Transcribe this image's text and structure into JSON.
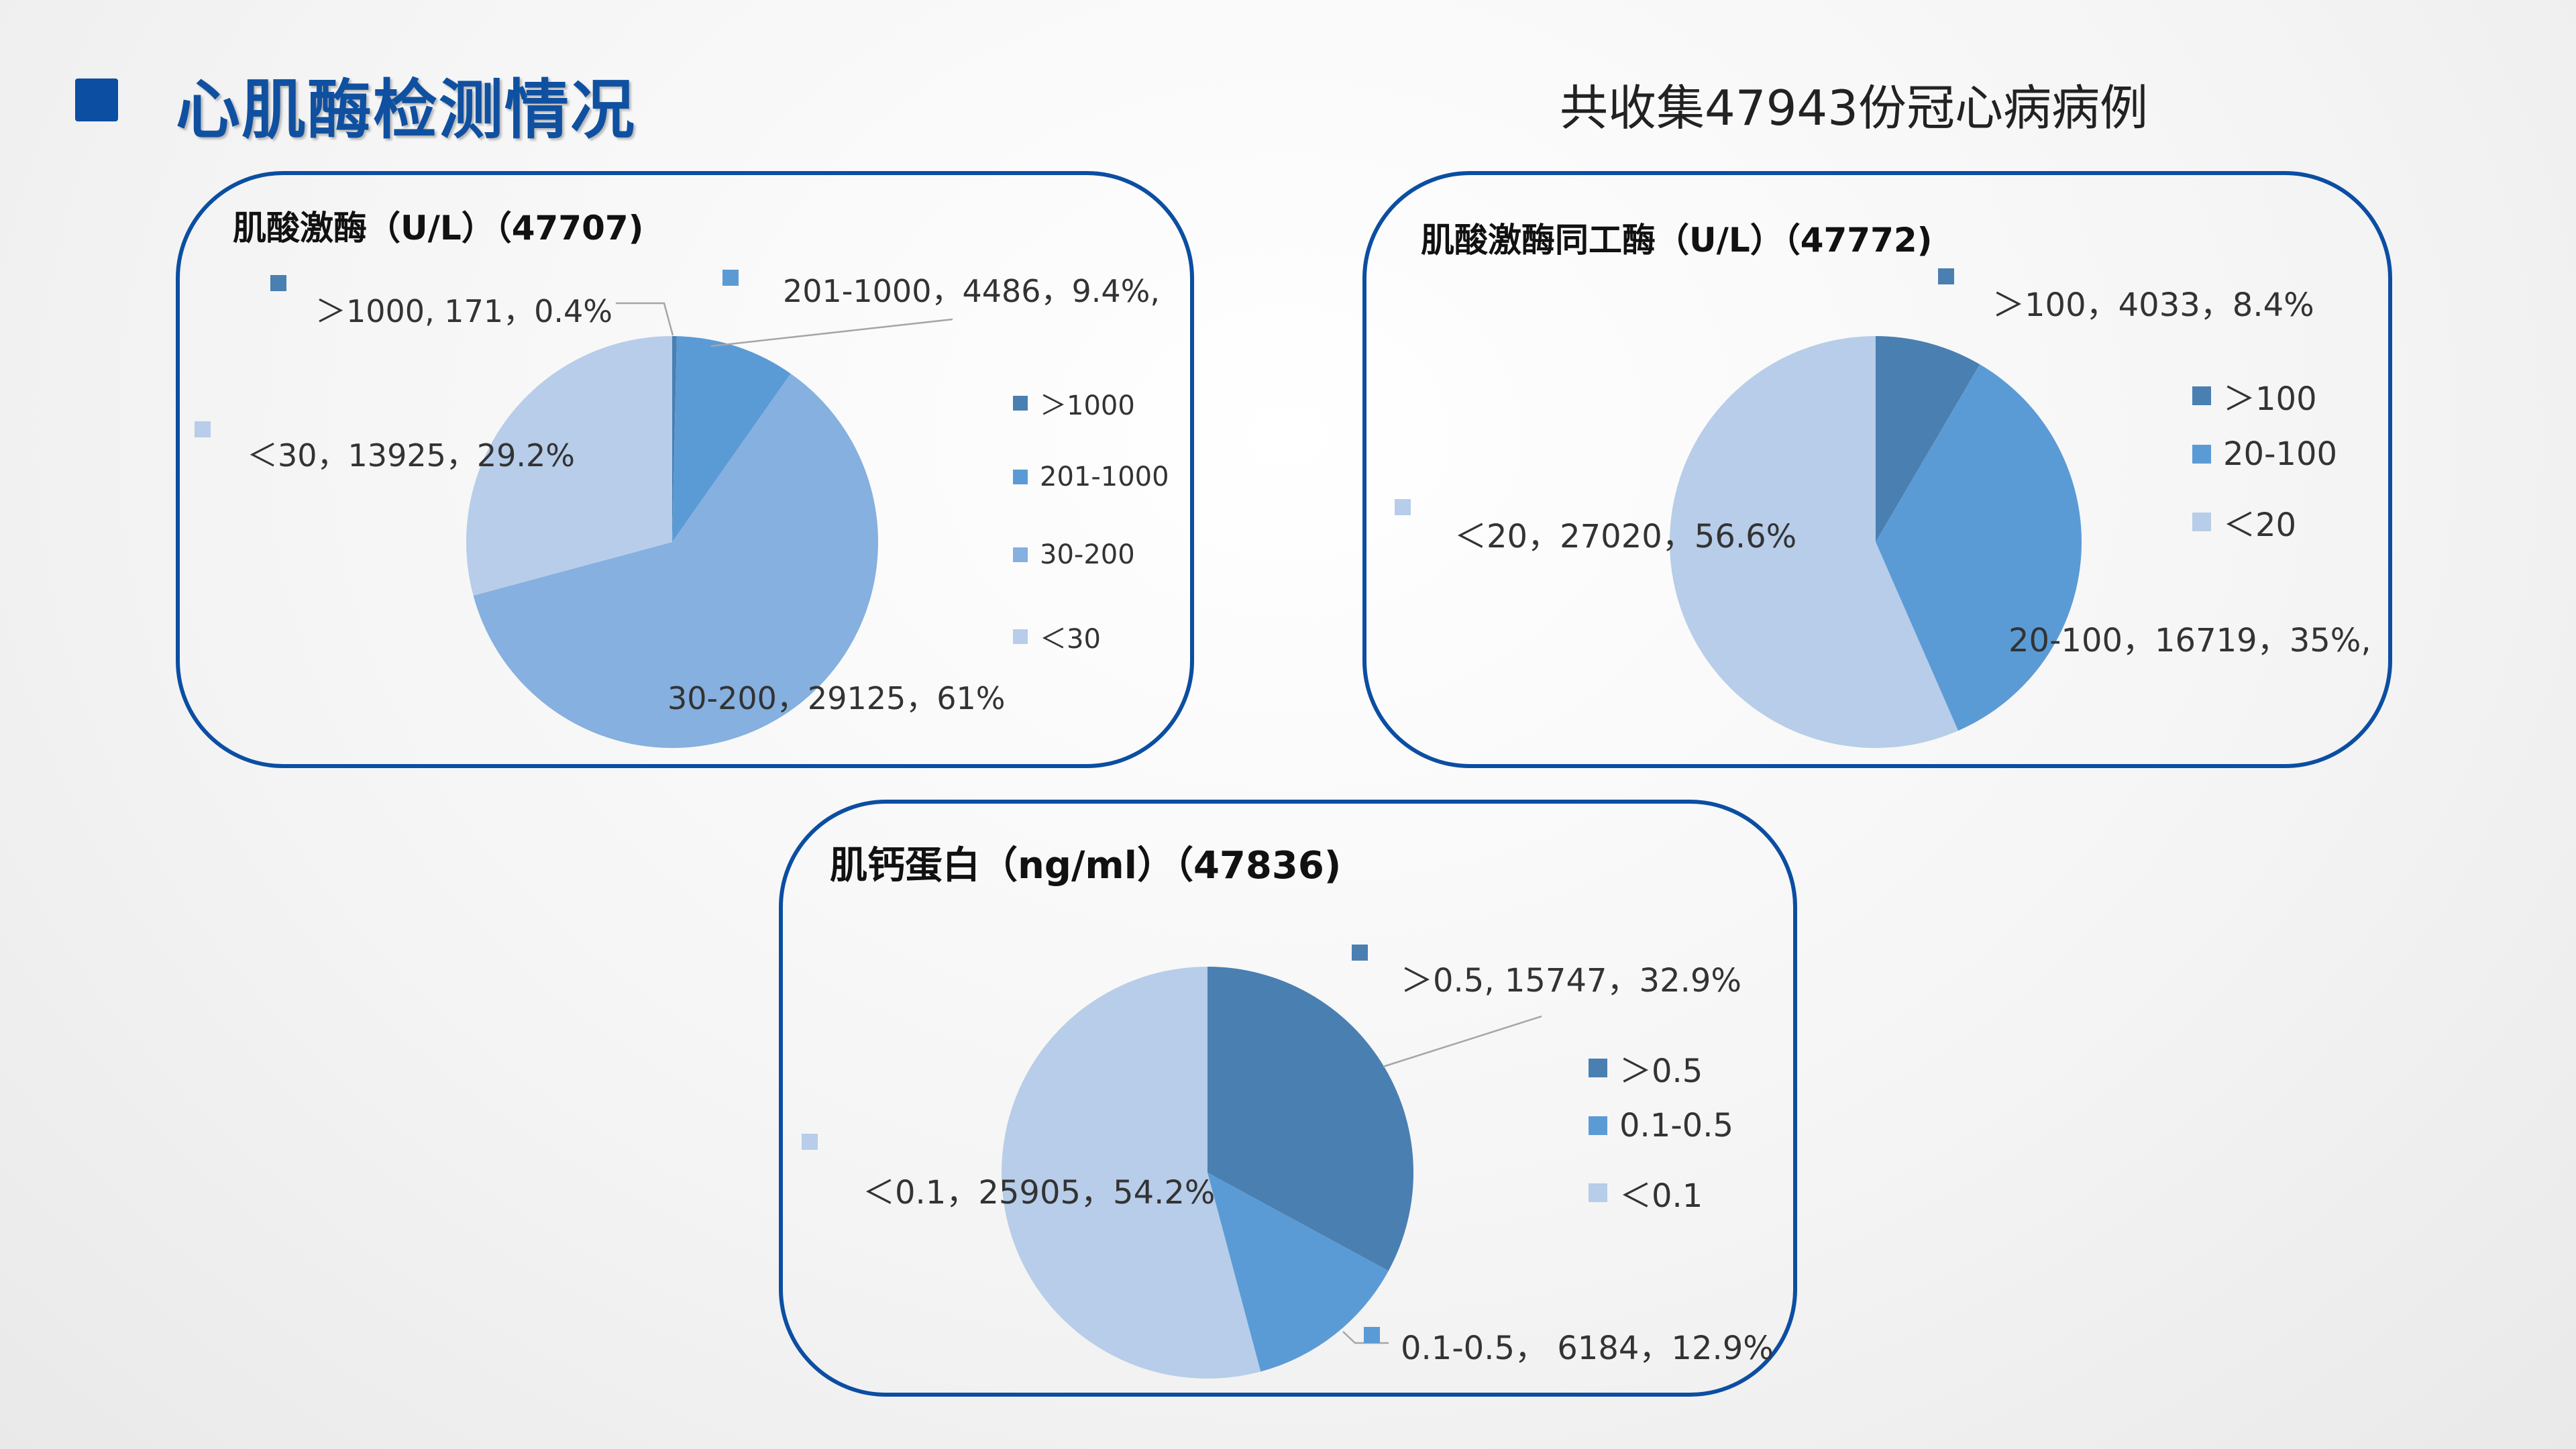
{
  "header": {
    "title": "心肌酶检测情况",
    "subtitle": "共收集47943份冠心病病例"
  },
  "colors": {
    "brand": "#0b4ea2",
    "dark": "#4a7fb1",
    "mid": "#5b9bd5",
    "light": "#85b0df",
    "lightest": "#b7cde9"
  },
  "chart_data": [
    {
      "type": "pie",
      "title": "肌酸激酶（U/L）（47707)",
      "categories": [
        "＞1000",
        "201-1000",
        "30-200",
        "＜30"
      ],
      "values": [
        171,
        4486,
        29125,
        13925
      ],
      "percents": [
        "0.4%",
        "9.4%",
        "61%",
        "29.2%"
      ],
      "legend": [
        "＞1000",
        "201-1000",
        "30-200",
        "＜30"
      ],
      "data_labels": [
        "＞1000, 171，0.4%",
        "201-1000，4486，9.4%,",
        "30-200，29125，61%",
        "＜30，13925，29.2%"
      ],
      "legend_position": "right"
    },
    {
      "type": "pie",
      "title": "肌酸激酶同工酶（U/L）（47772)",
      "categories": [
        "＞100",
        "20-100",
        "＜20"
      ],
      "values": [
        4033,
        16719,
        27020
      ],
      "percents": [
        "8.4%",
        "35%",
        "56.6%"
      ],
      "legend": [
        "＞100",
        "20-100",
        "＜20"
      ],
      "data_labels": [
        "＞100，4033，8.4%",
        "20-100，16719，35%,",
        "＜20，27020，56.6%"
      ],
      "legend_position": "right"
    },
    {
      "type": "pie",
      "title": "肌钙蛋白（ng/ml）（47836)",
      "categories": [
        "＞0.5",
        "0.1-0.5",
        "＜0.1"
      ],
      "values": [
        15747,
        6184,
        25905
      ],
      "percents": [
        "32.9%",
        "12.9%",
        "54.2%"
      ],
      "legend": [
        "＞0.5",
        "0.1-0.5",
        "＜0.1"
      ],
      "data_labels": [
        "＞0.5, 15747，32.9%",
        "0.1-0.5， 6184，12.9%",
        "＜0.1，25905，54.2%"
      ],
      "legend_position": "right"
    }
  ]
}
